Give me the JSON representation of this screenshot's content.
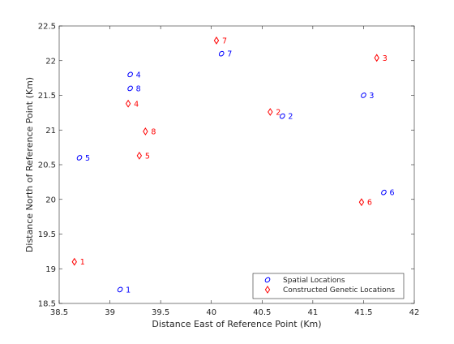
{
  "chart_data": {
    "type": "scatter",
    "title": "",
    "xlabel": "Distance East of Reference Point (Km)",
    "ylabel": "Distance North of Reference Point (Km)",
    "xlim": [
      38.5,
      42
    ],
    "ylim": [
      18.5,
      22.5
    ],
    "xticks": [
      "38.5",
      "39",
      "39.5",
      "40",
      "40.5",
      "41",
      "41.5",
      "42"
    ],
    "yticks": [
      "18.5",
      "19",
      "19.5",
      "20",
      "20.5",
      "21",
      "21.5",
      "22",
      "22.5"
    ],
    "grid": false,
    "legend_position": "bottom-right",
    "series": [
      {
        "name": "Spatial Locations",
        "marker": "circle",
        "color": "#0000ff",
        "points": [
          {
            "x": 39.1,
            "y": 18.7,
            "label": "1"
          },
          {
            "x": 40.7,
            "y": 21.2,
            "label": "2"
          },
          {
            "x": 41.5,
            "y": 21.5,
            "label": "3"
          },
          {
            "x": 39.2,
            "y": 21.8,
            "label": "4"
          },
          {
            "x": 38.7,
            "y": 20.6,
            "label": "5"
          },
          {
            "x": 41.7,
            "y": 20.1,
            "label": "6"
          },
          {
            "x": 40.1,
            "y": 22.1,
            "label": "7"
          },
          {
            "x": 39.2,
            "y": 21.6,
            "label": "8"
          }
        ]
      },
      {
        "name": "Constructed Genetic Locations",
        "marker": "diamond",
        "color": "#ff0000",
        "points": [
          {
            "x": 38.65,
            "y": 19.1,
            "label": "1"
          },
          {
            "x": 40.58,
            "y": 21.26,
            "label": "2"
          },
          {
            "x": 41.63,
            "y": 22.04,
            "label": "3"
          },
          {
            "x": 39.18,
            "y": 21.38,
            "label": "4"
          },
          {
            "x": 39.29,
            "y": 20.63,
            "label": "5"
          },
          {
            "x": 41.48,
            "y": 19.96,
            "label": "6"
          },
          {
            "x": 40.05,
            "y": 22.29,
            "label": "7"
          },
          {
            "x": 39.35,
            "y": 20.98,
            "label": "8"
          }
        ]
      }
    ]
  }
}
